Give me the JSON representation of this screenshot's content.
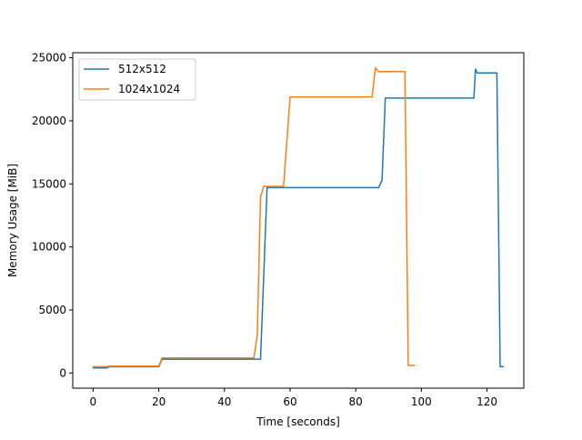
{
  "chart_data": {
    "type": "line",
    "title": "",
    "xlabel": "Time [seconds]",
    "ylabel": "Memory Usage [MiB]",
    "xlim": [
      -6.2,
      131.2
    ],
    "ylim": [
      -1200,
      25400
    ],
    "xticks": [
      0,
      20,
      40,
      60,
      80,
      100,
      120
    ],
    "yticks": [
      0,
      5000,
      10000,
      15000,
      20000,
      25000
    ],
    "grid": false,
    "legend_position": "upper left",
    "series": [
      {
        "name": "512x512",
        "color": "#1f77b4",
        "x": [
          0,
          4,
          5,
          20,
          21,
          40,
          41,
          50,
          50.5,
          51,
          53,
          87,
          88,
          89,
          116,
          116.5,
          117,
          117.5,
          118,
          119,
          120,
          123,
          124,
          124.5,
          125
        ],
        "y": [
          400,
          400,
          500,
          500,
          1100,
          1100,
          1100,
          1100,
          1100,
          1100,
          14700,
          14700,
          15300,
          21800,
          21800,
          24100,
          23800,
          23800,
          23800,
          23800,
          23800,
          23800,
          500,
          500,
          500
        ]
      },
      {
        "name": "1024x1024",
        "color": "#ff7f0e",
        "x": [
          0,
          4,
          5,
          20,
          21,
          40,
          49,
          50,
          51,
          52,
          53,
          58,
          60,
          85,
          86,
          87,
          95,
          96,
          97,
          98
        ],
        "y": [
          500,
          500,
          550,
          550,
          1200,
          1200,
          1200,
          3000,
          14000,
          14800,
          14800,
          14800,
          21900,
          21900,
          24200,
          23900,
          23900,
          600,
          600,
          600
        ]
      }
    ]
  }
}
